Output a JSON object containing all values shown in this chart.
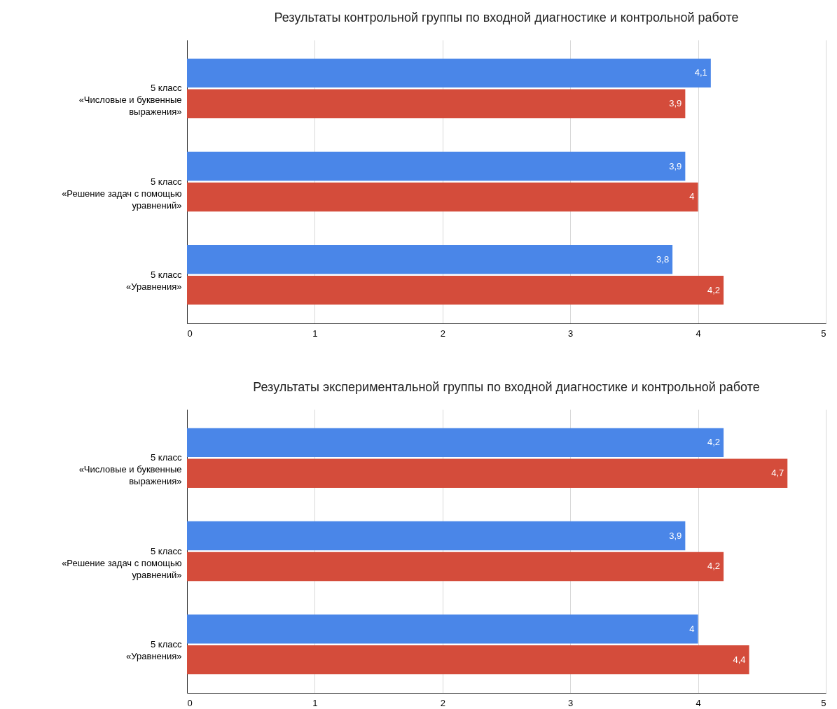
{
  "chart_data": [
    {
      "type": "bar",
      "orientation": "horizontal",
      "title": "Результаты контрольной группы по входной диагностике и контрольной работе",
      "categories": [
        "5 класс\n«Числовые и буквенные\nвыражения»",
        "5 класс\n«Решение задач с помощью\nуравнений»",
        "5 класс\n«Уравнения»"
      ],
      "series": [
        {
          "color": "#4a86e8",
          "values": [
            4.1,
            3.9,
            3.8
          ],
          "value_labels": [
            "4,1",
            "3,9",
            "3,8"
          ]
        },
        {
          "color": "#d44c3b",
          "values": [
            3.9,
            4,
            4.2
          ],
          "value_labels": [
            "3,9",
            "4",
            "4,2"
          ]
        }
      ],
      "xlim": [
        0,
        5
      ],
      "xticks": [
        0,
        1,
        2,
        3,
        4,
        5
      ],
      "grid": "x"
    },
    {
      "type": "bar",
      "orientation": "horizontal",
      "title": "Результаты экспериментальной группы по входной диагностике и контрольной работе",
      "categories": [
        "5 класс\n«Числовые и буквенные\nвыражения»",
        "5 класс\n«Решение задач с помощью\nуравнений»",
        "5 класс\n«Уравнения»"
      ],
      "series": [
        {
          "color": "#4a86e8",
          "values": [
            4.2,
            3.9,
            4
          ],
          "value_labels": [
            "4,2",
            "3,9",
            "4"
          ]
        },
        {
          "color": "#d44c3b",
          "values": [
            4.7,
            4.2,
            4.4
          ],
          "value_labels": [
            "4,7",
            "4,2",
            "4,4"
          ]
        }
      ],
      "xlim": [
        0,
        5
      ],
      "xticks": [
        0,
        1,
        2,
        3,
        4,
        5
      ],
      "grid": "x"
    }
  ]
}
